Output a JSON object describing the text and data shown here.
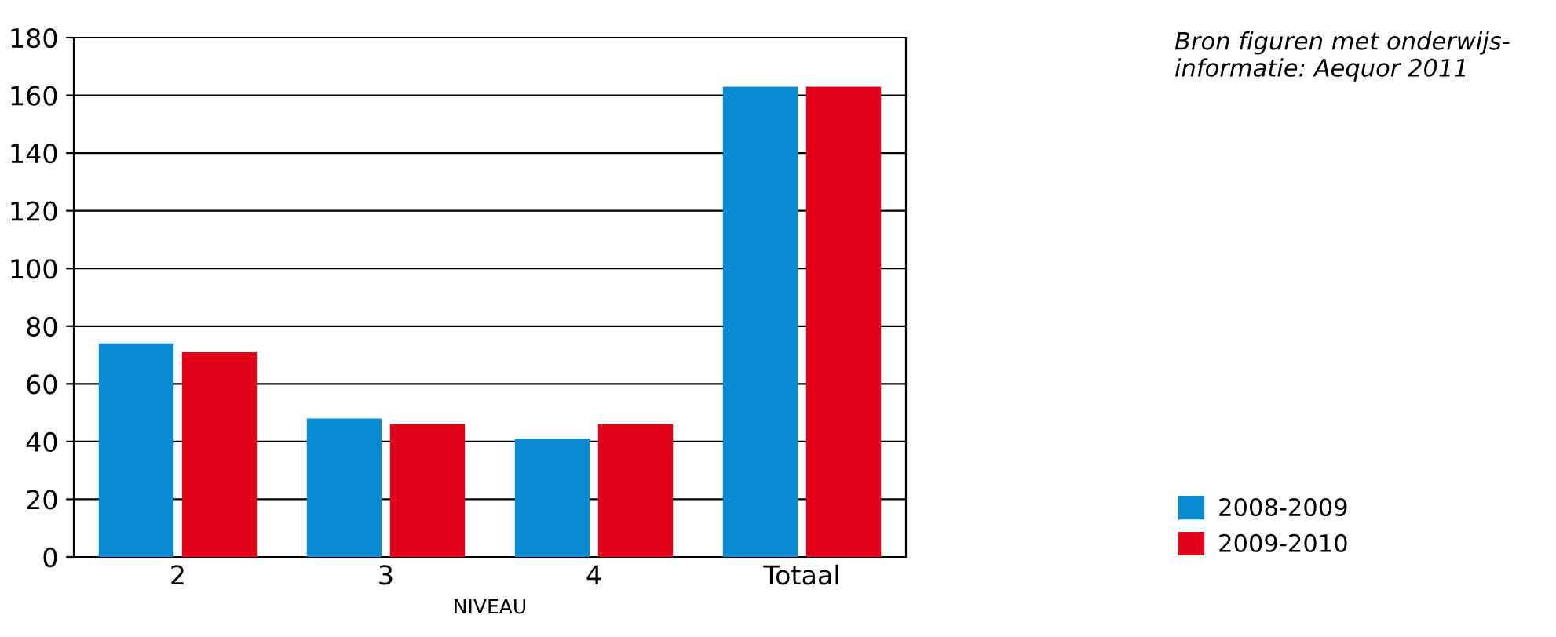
{
  "chart_data": {
    "type": "bar",
    "xlabel": "NIVEAU",
    "categories": [
      "2",
      "3",
      "4",
      "Totaal"
    ],
    "series": [
      {
        "name": "2008-2009",
        "color": "#0a8ad2",
        "values": [
          74,
          48,
          41,
          163
        ]
      },
      {
        "name": "2009-2010",
        "color": "#e3001b",
        "values": [
          71,
          46,
          46,
          163
        ]
      }
    ],
    "ylim": [
      0,
      180
    ],
    "yticks": [
      0,
      20,
      40,
      60,
      80,
      100,
      120,
      140,
      160,
      180
    ],
    "grid": "y",
    "legend": "bottom right",
    "annotations": [
      "Bron figuren met onderwijs-\ninformatie: Aequor 2011"
    ]
  }
}
